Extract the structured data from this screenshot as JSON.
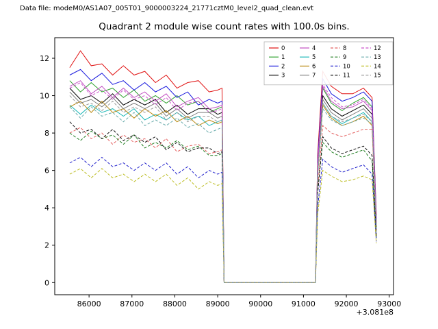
{
  "header": {
    "datafile_label": "Data file: modeM0/AS1A07_005T01_9000003224_21771cztM0_level2_quad_clean.evt",
    "title": "Quadrant 2 module wise count rates with 100.0s bins."
  },
  "chart_data": {
    "type": "line",
    "title": "Quadrant 2 module wise count rates with 100.0s bins.",
    "xlabel": "",
    "ylabel": "",
    "x_offset_label": "+3.081e8",
    "grid": false,
    "legend_position": "upper right",
    "legend_columns": 4,
    "xlim": [
      85200,
      93100
    ],
    "ylim": [
      -0.65,
      13.1
    ],
    "xticks": [
      86000,
      87000,
      88000,
      89000,
      90000,
      91000,
      92000,
      93000
    ],
    "yticks": [
      0,
      2,
      4,
      6,
      8,
      10,
      12
    ],
    "x": [
      85550,
      85800,
      86050,
      86300,
      86550,
      86800,
      87050,
      87300,
      87550,
      87800,
      88050,
      88300,
      88550,
      88800,
      89000,
      89100,
      89150,
      91280,
      91330,
      91450,
      91650,
      91900,
      92150,
      92400,
      92600,
      92700
    ],
    "series": [
      {
        "name": "0",
        "color": "#e01010",
        "dash": false,
        "values": [
          11.5,
          12.4,
          11.6,
          11.7,
          11.1,
          11.6,
          11.1,
          11.3,
          10.7,
          11.1,
          10.4,
          10.7,
          10.8,
          10.2,
          10.3,
          10.4,
          0,
          0,
          6.8,
          11.3,
          10.5,
          10.1,
          10.1,
          10.4,
          9.9,
          3.6
        ]
      },
      {
        "name": "1",
        "color": "#2ba02b",
        "dash": false,
        "values": [
          10.8,
          10.2,
          10.7,
          10.2,
          10.4,
          9.9,
          10.3,
          9.7,
          10.0,
          9.6,
          10.0,
          9.5,
          9.7,
          9.1,
          9.3,
          9.4,
          0,
          0,
          6.2,
          10.4,
          9.6,
          9.2,
          9.6,
          9.9,
          9.4,
          3.3
        ]
      },
      {
        "name": "2",
        "color": "#1515dd",
        "dash": false,
        "values": [
          11.1,
          11.4,
          10.8,
          11.2,
          10.6,
          10.8,
          10.3,
          10.7,
          10.2,
          10.5,
          9.9,
          10.2,
          9.5,
          9.8,
          9.6,
          9.7,
          0,
          0,
          6.5,
          10.9,
          10.1,
          9.7,
          9.9,
          10.2,
          9.7,
          3.4
        ]
      },
      {
        "name": "3",
        "color": "#000000",
        "dash": false,
        "values": [
          10.4,
          9.8,
          10.0,
          9.6,
          10.1,
          9.5,
          9.8,
          9.5,
          9.8,
          9.1,
          9.5,
          9.0,
          9.3,
          9.3,
          9.0,
          9.1,
          0,
          0,
          6.0,
          10.0,
          9.3,
          8.9,
          9.2,
          9.5,
          9.0,
          3.1
        ]
      },
      {
        "name": "4",
        "color": "#c24fc2",
        "dash": false,
        "values": [
          10.5,
          10.8,
          10.1,
          10.5,
          9.9,
          10.4,
          9.9,
          10.2,
          9.7,
          10.1,
          9.4,
          9.7,
          9.9,
          9.3,
          9.4,
          9.5,
          0,
          0,
          6.3,
          10.5,
          9.7,
          9.3,
          9.4,
          9.7,
          9.2,
          3.2
        ]
      },
      {
        "name": "5",
        "color": "#1ab8b8",
        "dash": false,
        "values": [
          9.5,
          9.0,
          9.5,
          9.1,
          9.3,
          8.9,
          9.3,
          8.7,
          9.0,
          8.7,
          9.1,
          8.7,
          8.9,
          8.4,
          8.6,
          8.7,
          0,
          0,
          5.8,
          9.6,
          8.9,
          8.5,
          8.8,
          9.1,
          8.6,
          3.0
        ]
      },
      {
        "name": "6",
        "color": "#b8860b",
        "dash": false,
        "values": [
          9.4,
          9.7,
          9.1,
          9.7,
          9.1,
          9.3,
          8.8,
          9.3,
          8.9,
          9.2,
          8.6,
          8.9,
          8.4,
          8.7,
          8.5,
          8.6,
          0,
          0,
          5.7,
          9.5,
          8.8,
          8.4,
          8.6,
          8.9,
          8.4,
          2.9
        ]
      },
      {
        "name": "7",
        "color": "#7f7f7f",
        "dash": false,
        "values": [
          10.2,
          9.6,
          9.8,
          9.4,
          9.9,
          9.3,
          9.6,
          9.3,
          9.6,
          8.9,
          9.3,
          8.8,
          9.1,
          9.1,
          8.8,
          8.9,
          0,
          0,
          5.9,
          9.8,
          9.1,
          8.7,
          9.0,
          9.3,
          8.8,
          3.0
        ]
      },
      {
        "name": "8",
        "color": "#e46060",
        "dash": true,
        "values": [
          8.0,
          8.3,
          7.7,
          8.0,
          7.4,
          7.9,
          7.5,
          7.7,
          7.2,
          7.7,
          7.0,
          7.3,
          7.4,
          6.9,
          7.0,
          7.1,
          0,
          0,
          5.0,
          8.4,
          8.0,
          7.8,
          8.0,
          8.2,
          8.2,
          2.8
        ]
      },
      {
        "name": "9",
        "color": "#1e7d1e",
        "dash": true,
        "values": [
          8.0,
          7.6,
          8.1,
          7.7,
          7.9,
          7.4,
          7.9,
          7.2,
          7.5,
          7.2,
          7.6,
          7.1,
          7.3,
          6.8,
          6.8,
          6.9,
          0,
          0,
          4.9,
          7.5,
          7.0,
          6.7,
          6.9,
          7.1,
          6.5,
          2.4
        ]
      },
      {
        "name": "10",
        "color": "#2222cc",
        "dash": true,
        "values": [
          6.4,
          6.7,
          6.2,
          6.7,
          6.2,
          6.4,
          6.0,
          6.4,
          6.0,
          6.4,
          5.8,
          6.2,
          5.6,
          6.0,
          5.8,
          5.9,
          0,
          0,
          4.0,
          6.6,
          6.2,
          5.9,
          6.1,
          6.3,
          5.8,
          2.2
        ]
      },
      {
        "name": "11",
        "color": "#111111",
        "dash": true,
        "values": [
          8.6,
          8.0,
          8.2,
          7.7,
          8.2,
          7.6,
          7.9,
          7.5,
          7.8,
          7.1,
          7.5,
          7.0,
          7.2,
          7.2,
          6.9,
          7.0,
          0,
          0,
          4.7,
          7.8,
          7.2,
          6.9,
          7.1,
          7.3,
          6.8,
          2.5
        ]
      },
      {
        "name": "12",
        "color": "#cc55cc",
        "dash": true,
        "values": [
          10.4,
          10.7,
          10.0,
          10.3,
          9.8,
          10.3,
          9.8,
          10.0,
          9.5,
          9.9,
          9.2,
          9.6,
          9.7,
          9.1,
          9.2,
          9.3,
          0,
          0,
          6.2,
          10.6,
          9.9,
          9.4,
          9.5,
          9.8,
          9.3,
          3.2
        ]
      },
      {
        "name": "13",
        "color": "#66aaaa",
        "dash": true,
        "values": [
          9.4,
          8.8,
          9.4,
          8.9,
          9.1,
          8.6,
          9.1,
          8.4,
          8.7,
          8.4,
          8.8,
          8.3,
          8.5,
          8.0,
          8.2,
          8.3,
          0,
          0,
          5.6,
          9.3,
          8.7,
          8.4,
          8.6,
          8.8,
          8.5,
          2.9
        ]
      },
      {
        "name": "14",
        "color": "#bcbd22",
        "dash": true,
        "values": [
          5.8,
          6.1,
          5.6,
          6.1,
          5.6,
          5.8,
          5.4,
          5.8,
          5.4,
          5.8,
          5.2,
          5.6,
          5.0,
          5.4,
          5.2,
          5.3,
          0,
          0,
          3.6,
          6.0,
          5.7,
          5.4,
          5.5,
          5.7,
          5.5,
          2.1
        ]
      },
      {
        "name": "15",
        "color": "#999999",
        "dash": true,
        "values": [
          10.0,
          9.4,
          9.6,
          9.2,
          9.7,
          9.1,
          9.4,
          9.1,
          9.4,
          8.7,
          9.1,
          8.6,
          8.9,
          8.9,
          8.6,
          8.7,
          0,
          0,
          5.8,
          9.6,
          8.9,
          8.6,
          8.8,
          9.0,
          8.6,
          3.0
        ]
      }
    ]
  }
}
